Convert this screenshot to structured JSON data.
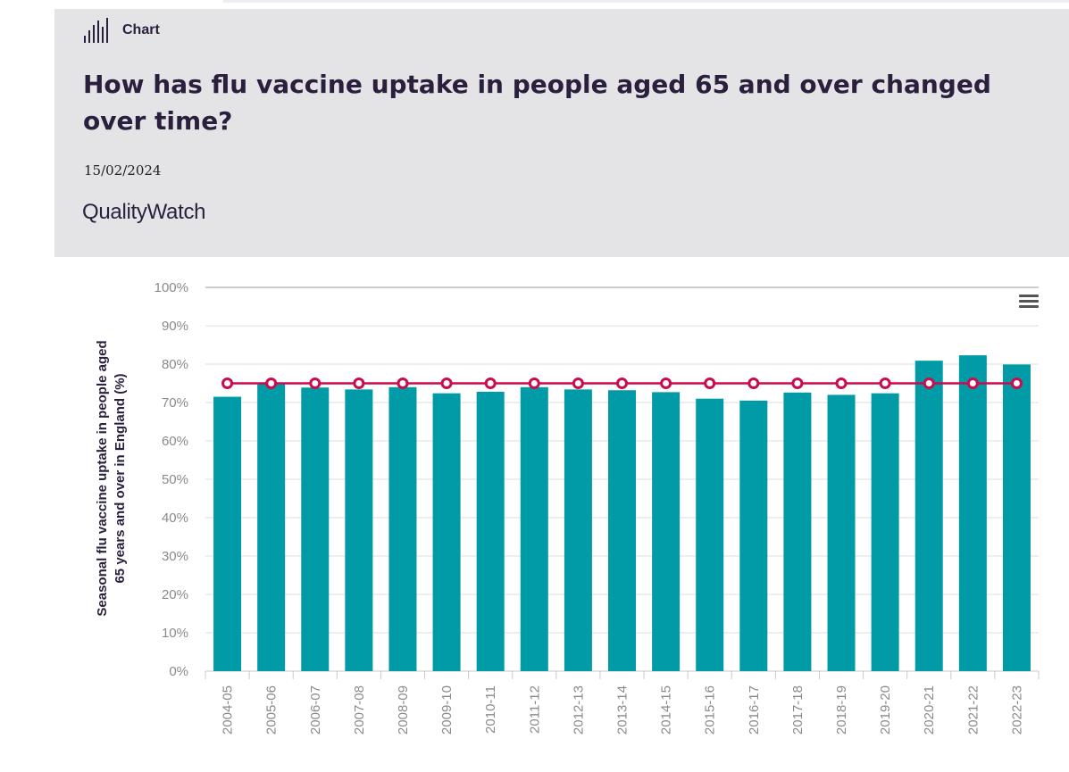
{
  "header": {
    "kind_label": "Chart",
    "title": "How has flu vaccine uptake in people aged 65 and over changed over time?",
    "date": "15/02/2024",
    "brand": "QualityWatch"
  },
  "icons": {
    "chart": "bar-chart-icon",
    "menu": "hamburger-menu-icon"
  },
  "colors": {
    "bar": "#009ba6",
    "target_line": "#cc0a4c",
    "title": "#2a1f3d"
  },
  "chart_data": {
    "type": "bar",
    "ylabel": "Seasonal flu vaccine uptake in people aged 65 years and over in England (%)",
    "xlabel": "",
    "ylim": [
      0,
      100
    ],
    "y_ticks": [
      "0%",
      "10%",
      "20%",
      "30%",
      "40%",
      "50%",
      "60%",
      "70%",
      "80%",
      "90%",
      "100%"
    ],
    "grid": true,
    "categories": [
      "2004-05",
      "2005-06",
      "2006-07",
      "2007-08",
      "2008-09",
      "2009-10",
      "2010-11",
      "2011-12",
      "2012-13",
      "2013-14",
      "2014-15",
      "2015-16",
      "2016-17",
      "2017-18",
      "2018-19",
      "2019-20",
      "2020-21",
      "2021-22",
      "2022-23"
    ],
    "series": [
      {
        "type": "bar",
        "values": [
          71.5,
          75.1,
          73.9,
          73.4,
          74.0,
          72.4,
          72.8,
          74.0,
          73.4,
          73.2,
          72.7,
          71.0,
          70.5,
          72.6,
          72.0,
          72.4,
          80.9,
          82.3,
          79.9
        ]
      },
      {
        "type": "line",
        "values": [
          75,
          75,
          75,
          75,
          75,
          75,
          75,
          75,
          75,
          75,
          75,
          75,
          75,
          75,
          75,
          75,
          75,
          75,
          75
        ]
      }
    ]
  }
}
